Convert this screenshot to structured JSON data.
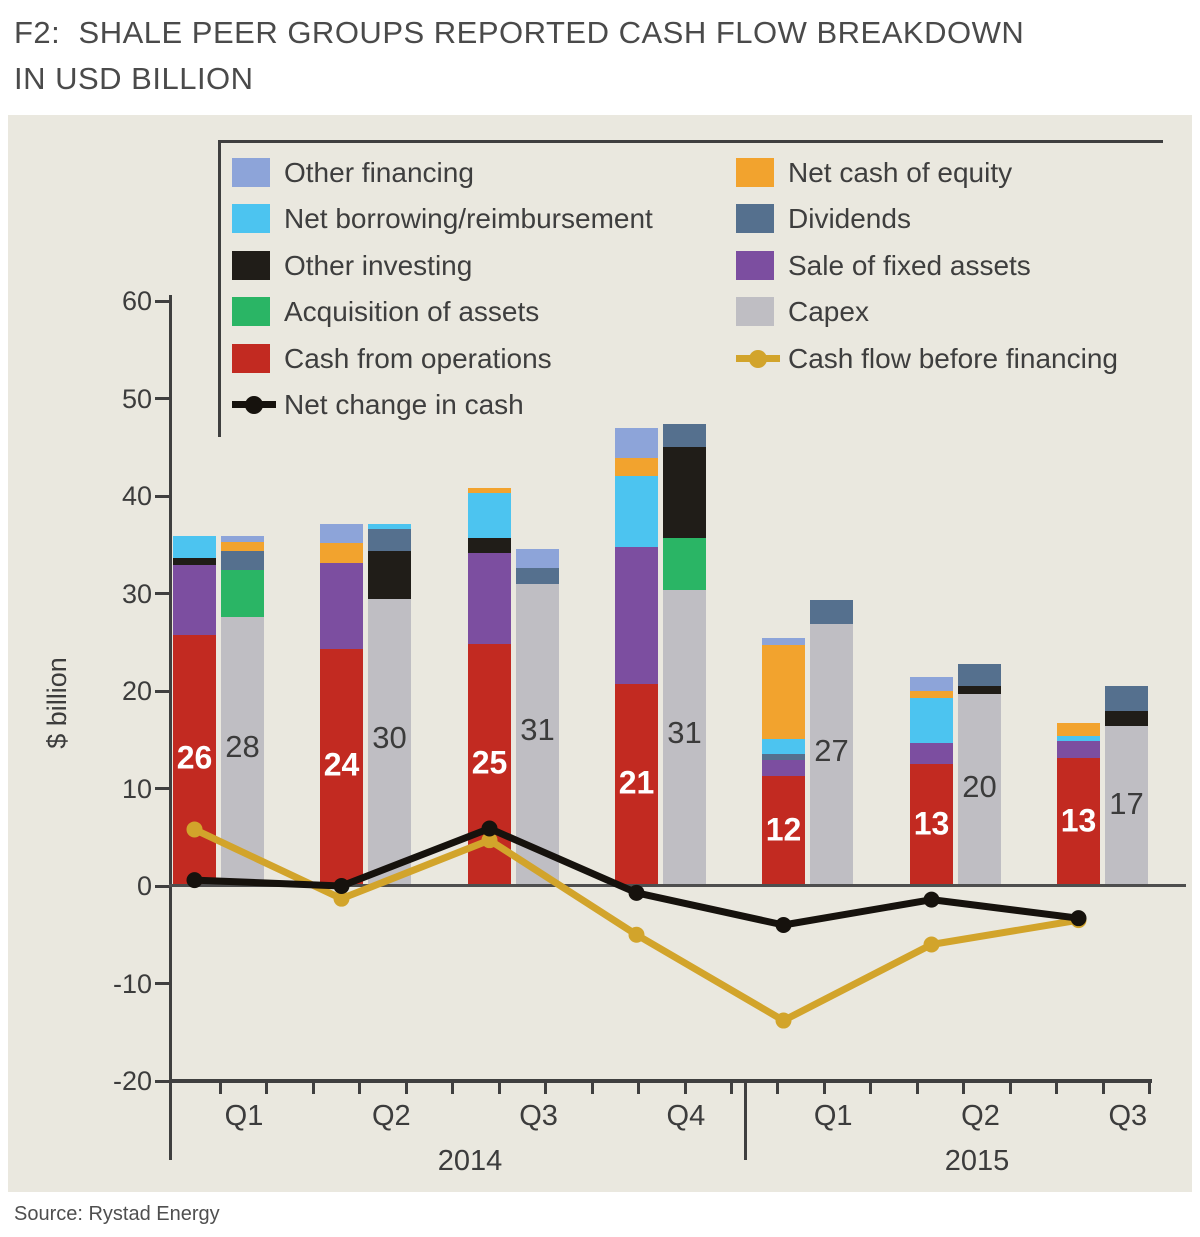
{
  "figure": {
    "title_line1": "F2:  SHALE PEER GROUPS REPORTED CASH FLOW BREAKDOWN",
    "title_line2": "IN USD BILLION",
    "source": "Source: Rystad Energy"
  },
  "chart_data": {
    "type": "bar",
    "subtype": "stacked-bars-with-line-overlay",
    "title": "F2: SHALE PEER GROUPS REPORTED CASH FLOW BREAKDOWN IN USD BILLION",
    "ylabel": "$ billion",
    "ylim": [
      -20,
      60
    ],
    "ytick_values": [
      60,
      50,
      40,
      30,
      20,
      10,
      0,
      -10,
      -20
    ],
    "grid": "off",
    "categories": [
      "Q1 2014",
      "Q2 2014",
      "Q3 2014",
      "Q4 2014",
      "Q1 2015",
      "Q2 2015",
      "Q3 2015"
    ],
    "quarter_labels": [
      "Q1",
      "Q2",
      "Q3",
      "Q4",
      "Q1",
      "Q2",
      "Q3"
    ],
    "year_labels": [
      "2014",
      "2015"
    ],
    "colors": {
      "other_financing": "#8da4d9",
      "net_borrowing": "#4cc4f0",
      "other_investing": "#201d18",
      "acquisition": "#2ab565",
      "cash_from_operations": "#c22a21",
      "net_cash_of_equity": "#f2a32e",
      "dividends": "#55708e",
      "sale_of_fixed_assets": "#7c4ea0",
      "capex": "#bfbec3",
      "cash_flow_before_financing": "#d2a42b",
      "net_change_in_cash": "#16120d",
      "axis": "#3f3f3f",
      "zero_line": "#4e4e4e",
      "panel_bg": "#eae8df"
    },
    "bars": {
      "sources": [
        {
          "category": "Q1 2014",
          "label": "26",
          "segments": [
            [
              "cash_from_operations",
              25.7
            ],
            [
              "sale_of_fixed_assets",
              7.2
            ],
            [
              "other_investing",
              0.7
            ],
            [
              "net_borrowing",
              2.3
            ]
          ]
        },
        {
          "category": "Q2 2014",
          "label": "24",
          "segments": [
            [
              "cash_from_operations",
              24.3
            ],
            [
              "sale_of_fixed_assets",
              8.8
            ],
            [
              "net_cash_of_equity",
              2.1
            ],
            [
              "other_financing",
              1.9
            ]
          ]
        },
        {
          "category": "Q3 2014",
          "label": "25",
          "segments": [
            [
              "cash_from_operations",
              24.8
            ],
            [
              "sale_of_fixed_assets",
              9.4
            ],
            [
              "other_investing",
              1.5
            ],
            [
              "net_borrowing",
              4.6
            ],
            [
              "net_cash_of_equity",
              0.5
            ]
          ]
        },
        {
          "category": "Q4 2014",
          "label": "21",
          "segments": [
            [
              "cash_from_operations",
              20.7
            ],
            [
              "sale_of_fixed_assets",
              14.1
            ],
            [
              "net_borrowing",
              7.3
            ],
            [
              "net_cash_of_equity",
              1.8
            ],
            [
              "other_financing",
              3.1
            ]
          ]
        },
        {
          "category": "Q1 2015",
          "label": "12",
          "segments": [
            [
              "cash_from_operations",
              11.3
            ],
            [
              "sale_of_fixed_assets",
              1.6
            ],
            [
              "dividends",
              0.6
            ],
            [
              "net_borrowing",
              1.6
            ],
            [
              "net_cash_of_equity",
              9.6
            ],
            [
              "other_financing",
              0.7
            ]
          ]
        },
        {
          "category": "Q2 2015",
          "label": "13",
          "segments": [
            [
              "cash_from_operations",
              12.5
            ],
            [
              "sale_of_fixed_assets",
              2.2
            ],
            [
              "net_borrowing",
              4.6
            ],
            [
              "net_cash_of_equity",
              0.7
            ],
            [
              "other_financing",
              1.4
            ]
          ]
        },
        {
          "category": "Q3 2015",
          "label": "13",
          "segments": [
            [
              "cash_from_operations",
              13.1
            ],
            [
              "sale_of_fixed_assets",
              1.8
            ],
            [
              "net_borrowing",
              0.5
            ],
            [
              "net_cash_of_equity",
              1.3
            ]
          ]
        }
      ],
      "uses": [
        {
          "category": "Q1 2014",
          "label": "28",
          "segments": [
            [
              "capex",
              27.6
            ],
            [
              "acquisition",
              4.8
            ],
            [
              "dividends",
              2.0
            ],
            [
              "net_cash_of_equity",
              0.9
            ],
            [
              "other_financing",
              0.6
            ]
          ]
        },
        {
          "category": "Q2 2014",
          "label": "30",
          "segments": [
            [
              "capex",
              29.4
            ],
            [
              "other_investing",
              5.0
            ],
            [
              "dividends",
              2.2
            ],
            [
              "net_borrowing",
              0.5
            ]
          ]
        },
        {
          "category": "Q3 2014",
          "label": "31",
          "segments": [
            [
              "capex",
              31.0
            ],
            [
              "dividends",
              1.6
            ],
            [
              "other_financing",
              2.0
            ]
          ]
        },
        {
          "category": "Q4 2014",
          "label": "31",
          "segments": [
            [
              "capex",
              30.4
            ],
            [
              "acquisition",
              5.3
            ],
            [
              "other_investing",
              9.3
            ],
            [
              "dividends",
              2.4
            ]
          ]
        },
        {
          "category": "Q1 2015",
          "label": "27",
          "segments": [
            [
              "capex",
              26.9
            ],
            [
              "dividends",
              2.4
            ]
          ]
        },
        {
          "category": "Q2 2015",
          "label": "20",
          "segments": [
            [
              "capex",
              19.7
            ],
            [
              "other_investing",
              0.8
            ],
            [
              "dividends",
              2.3
            ]
          ]
        },
        {
          "category": "Q3 2015",
          "label": "17",
          "segments": [
            [
              "capex",
              16.4
            ],
            [
              "other_investing",
              1.5
            ],
            [
              "dividends",
              2.6
            ]
          ]
        }
      ]
    },
    "lines": [
      {
        "name": "Cash flow before financing",
        "key": "cash_flow_before_financing",
        "values": [
          5.8,
          -1.3,
          4.7,
          -5.0,
          -13.8,
          -6.0,
          -3.5
        ]
      },
      {
        "name": "Net change in cash",
        "key": "net_change_in_cash",
        "values": [
          0.6,
          0.0,
          5.9,
          -0.7,
          -4.0,
          -1.4,
          -3.3
        ]
      }
    ],
    "legend": {
      "position": "top",
      "left_column": [
        {
          "type": "swatch",
          "key": "other_financing",
          "label": "Other financing"
        },
        {
          "type": "swatch",
          "key": "net_borrowing",
          "label": "Net borrowing/reimbursement"
        },
        {
          "type": "swatch",
          "key": "other_investing",
          "label": "Other investing"
        },
        {
          "type": "swatch",
          "key": "acquisition",
          "label": "Acquisition of assets"
        },
        {
          "type": "swatch",
          "key": "cash_from_operations",
          "label": "Cash from operations"
        },
        {
          "type": "line",
          "key": "net_change_in_cash",
          "label": "Net change in cash"
        }
      ],
      "right_column": [
        {
          "type": "swatch",
          "key": "net_cash_of_equity",
          "label": "Net cash of equity"
        },
        {
          "type": "swatch",
          "key": "dividends",
          "label": "Dividends"
        },
        {
          "type": "swatch",
          "key": "sale_of_fixed_assets",
          "label": "Sale of fixed assets"
        },
        {
          "type": "swatch",
          "key": "capex",
          "label": "Capex"
        },
        {
          "type": "line",
          "key": "cash_flow_before_financing",
          "label": "Cash flow before financing"
        }
      ]
    }
  }
}
